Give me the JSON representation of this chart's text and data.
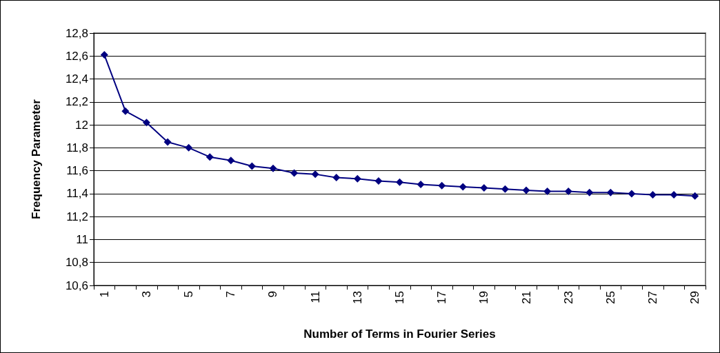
{
  "chart_data": {
    "type": "line",
    "xlabel": "Number of Terms in Fourier Series",
    "ylabel": "Frequency Parameter",
    "categories": [
      "1",
      null,
      "3",
      null,
      "5",
      null,
      "7",
      null,
      "9",
      null,
      "11",
      null,
      "13",
      null,
      "15",
      null,
      "17",
      null,
      "19",
      null,
      "21",
      null,
      "23",
      null,
      "25",
      null,
      "27",
      null,
      "29"
    ],
    "series": [
      {
        "color": "#000080",
        "values": [
          12.61,
          12.12,
          12.02,
          11.85,
          11.8,
          11.72,
          11.69,
          11.64,
          11.62,
          11.58,
          11.57,
          11.54,
          11.53,
          11.51,
          11.5,
          11.48,
          11.47,
          11.46,
          11.45,
          11.44,
          11.43,
          11.42,
          11.42,
          11.41,
          11.41,
          11.4,
          11.39,
          11.39,
          11.38
        ]
      }
    ],
    "ylim": [
      10.6,
      12.8
    ],
    "yticks": [
      {
        "value": 10.6,
        "label": "10,6"
      },
      {
        "value": 10.8,
        "label": "10,8"
      },
      {
        "value": 11,
        "label": "11"
      },
      {
        "value": 11.2,
        "label": "11,2"
      },
      {
        "value": 11.4,
        "label": "11,4"
      },
      {
        "value": 11.6,
        "label": "11,6"
      },
      {
        "value": 11.8,
        "label": "11,8"
      },
      {
        "value": 12,
        "label": "12"
      },
      {
        "value": 12.2,
        "label": "12,2"
      },
      {
        "value": 12.4,
        "label": "12,4"
      },
      {
        "value": 12.6,
        "label": "12,6"
      },
      {
        "value": 12.8,
        "label": "12,8"
      }
    ],
    "grid": "y",
    "marker": "diamond",
    "line_style": "solid"
  }
}
